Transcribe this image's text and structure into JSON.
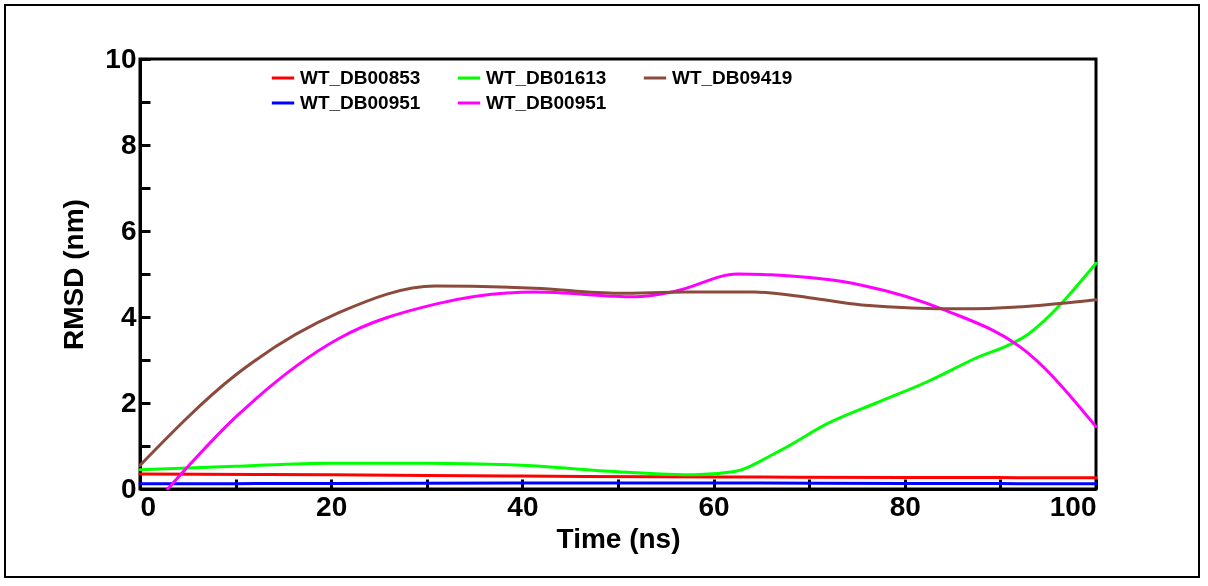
{
  "chart_data": {
    "type": "line",
    "xlabel": "Time (ns)",
    "ylabel": "RMSD (nm)",
    "xlim": [
      0,
      100
    ],
    "ylim": [
      0,
      10
    ],
    "xticks": [
      0,
      {
        "value": 10,
        "label": null
      },
      20,
      {
        "value": 30,
        "label": null
      },
      40,
      {
        "value": 50,
        "label": null
      },
      60,
      {
        "value": 70,
        "label": null
      },
      80,
      {
        "value": 90,
        "label": null
      },
      100
    ],
    "yticks": [
      0,
      {
        "value": 1,
        "label": null
      },
      2,
      {
        "value": 3,
        "label": null
      },
      4,
      {
        "value": 5,
        "label": null
      },
      6,
      {
        "value": 7,
        "label": null
      },
      8,
      {
        "value": 9,
        "label": null
      },
      10
    ],
    "legend": "top",
    "grid": false,
    "marker": "none",
    "line_style": "solid",
    "series": [
      {
        "name": "WT_DB00853",
        "color": "#ff0000",
        "x": [
          0,
          20,
          40,
          60,
          80,
          100
        ],
        "values": [
          0.35,
          0.33,
          0.3,
          0.28,
          0.27,
          0.26
        ]
      },
      {
        "name": "WT_DB00951",
        "color": "#0000ff",
        "x": [
          0,
          20,
          40,
          60,
          80,
          100
        ],
        "values": [
          0.12,
          0.13,
          0.14,
          0.14,
          0.13,
          0.12
        ]
      },
      {
        "name": "WT_DB01613",
        "color": "#00ff00",
        "x": [
          0,
          10,
          20,
          30,
          40,
          50,
          58,
          62,
          67,
          72,
          77,
          82.4,
          87,
          92.9,
          100
        ],
        "values": [
          0.45,
          0.53,
          0.6,
          0.6,
          0.55,
          0.4,
          0.33,
          0.4,
          0.9,
          1.53,
          2.0,
          2.5,
          3.0,
          3.6,
          5.25
        ]
      },
      {
        "name": "WT_DB00951",
        "color": "#ff00ff",
        "x": [
          2.9,
          10,
          20.8,
          30.9,
          41.3,
          51.8,
          56,
          62.5,
          66,
          75.5,
          84.2,
          92.9,
          100
        ],
        "values": [
          0,
          1.67,
          3.5,
          4.3,
          4.58,
          4.47,
          4.6,
          5.0,
          4.98,
          4.74,
          4.16,
          3.16,
          1.45
        ]
      },
      {
        "name": "WT_DB09419",
        "color": "#8b4a3c",
        "x": [
          0,
          10,
          20.8,
          30.9,
          41.3,
          50,
          57,
          64.3,
          70,
          75.5,
          86,
          93,
          100
        ],
        "values": [
          0.55,
          2.65,
          4.1,
          4.72,
          4.67,
          4.55,
          4.58,
          4.58,
          4.45,
          4.28,
          4.19,
          4.25,
          4.4
        ]
      }
    ]
  }
}
